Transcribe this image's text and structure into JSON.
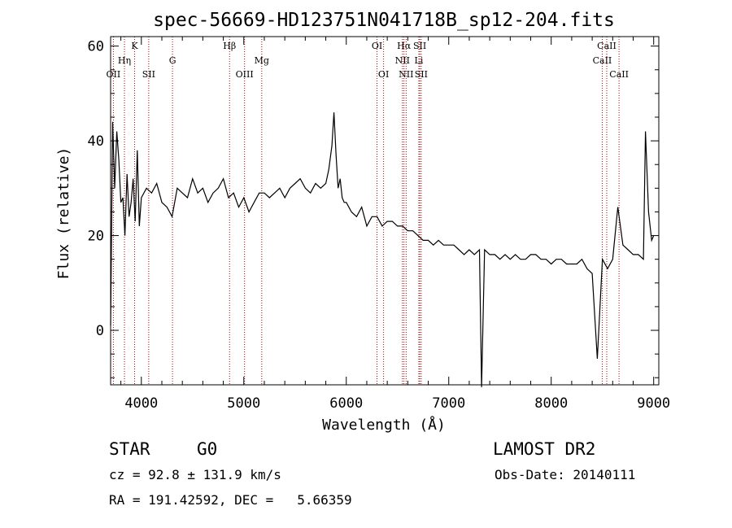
{
  "chart_data": {
    "type": "line",
    "title": "spec-56669-HD123751N041718B_sp12-204.fits",
    "xlabel": "Wavelength (Å)",
    "ylabel": "Flux (relative)",
    "xlim": [
      3700,
      9050
    ],
    "ylim": [
      -11.5,
      62
    ],
    "xticks": [
      4000,
      5000,
      6000,
      7000,
      8000,
      9000
    ],
    "yticks": [
      0,
      20,
      40,
      60
    ],
    "line_color": "#000000",
    "marker_color": "#b00000",
    "series": [
      {
        "x": [
          3700,
          3720,
          3740,
          3760,
          3780,
          3800,
          3820,
          3840,
          3860,
          3880,
          3900,
          3920,
          3940,
          3960,
          3980,
          4000,
          4050,
          4100,
          4150,
          4200,
          4250,
          4300,
          4350,
          4400,
          4450,
          4500,
          4550,
          4600,
          4650,
          4700,
          4750,
          4800,
          4850,
          4900,
          4950,
          5000,
          5050,
          5100,
          5150,
          5200,
          5250,
          5300,
          5350,
          5400,
          5450,
          5500,
          5550,
          5600,
          5650,
          5700,
          5750,
          5800,
          5830,
          5860,
          5880,
          5900,
          5920,
          5940,
          5960,
          5980,
          6000,
          6050,
          6100,
          6150,
          6200,
          6250,
          6300,
          6350,
          6400,
          6450,
          6500,
          6550,
          6600,
          6650,
          6700,
          6750,
          6800,
          6850,
          6900,
          6950,
          7000,
          7050,
          7100,
          7150,
          7200,
          7250,
          7300,
          7320,
          7350,
          7400,
          7450,
          7500,
          7550,
          7600,
          7650,
          7700,
          7750,
          7800,
          7850,
          7900,
          7950,
          8000,
          8050,
          8100,
          8150,
          8200,
          8250,
          8300,
          8350,
          8400,
          8450,
          8500,
          8550,
          8600,
          8650,
          8700,
          8750,
          8800,
          8850,
          8900,
          8920,
          8950,
          8980,
          9000
        ],
        "y": [
          1,
          44,
          30,
          42,
          36,
          27,
          28,
          20,
          33,
          24,
          27,
          32,
          23,
          38,
          22,
          28,
          30,
          29,
          31,
          27,
          26,
          24,
          30,
          29,
          28,
          32,
          29,
          30,
          27,
          29,
          30,
          32,
          28,
          29,
          26,
          28,
          25,
          27,
          29,
          29,
          28,
          29,
          30,
          28,
          30,
          31,
          32,
          30,
          29,
          31,
          30,
          31,
          34,
          39,
          46,
          37,
          30,
          32,
          28,
          27,
          27,
          25,
          24,
          26,
          22,
          24,
          24,
          22,
          23,
          23,
          22,
          22,
          21,
          21,
          20,
          19,
          19,
          18,
          19,
          18,
          18,
          18,
          17,
          16,
          17,
          16,
          17,
          -12,
          17,
          16,
          16,
          15,
          16,
          15,
          16,
          15,
          15,
          16,
          16,
          15,
          15,
          14,
          15,
          15,
          14,
          14,
          14,
          15,
          13,
          12,
          -6,
          15,
          13,
          15,
          26,
          18,
          17,
          16,
          16,
          15,
          42,
          25,
          19,
          20
        ]
      }
    ],
    "markers": [
      {
        "label": "OII",
        "x": 3727,
        "row": 3
      },
      {
        "label": "Hη",
        "x": 3835,
        "row": 2
      },
      {
        "label": "K",
        "x": 3934,
        "row": 1
      },
      {
        "label": "SII",
        "x": 4072,
        "row": 3
      },
      {
        "label": "G",
        "x": 4304,
        "row": 2
      },
      {
        "label": "Hβ",
        "x": 4861,
        "row": 1
      },
      {
        "label": "OIII",
        "x": 5007,
        "row": 3
      },
      {
        "label": "Mg",
        "x": 5175,
        "row": 2
      },
      {
        "label": "OI",
        "x": 6300,
        "row": 1
      },
      {
        "label": "OI",
        "x": 6364,
        "row": 3
      },
      {
        "label": "Hα",
        "x": 6563,
        "row": 1
      },
      {
        "label": "NII",
        "x": 6548,
        "row": 2
      },
      {
        "label": "NII",
        "x": 6584,
        "row": 3
      },
      {
        "label": "SII",
        "x": 6717,
        "row": 1
      },
      {
        "label": "Li",
        "x": 6708,
        "row": 2
      },
      {
        "label": "SII",
        "x": 6731,
        "row": 3
      },
      {
        "label": "CaII",
        "x": 8542,
        "row": 1
      },
      {
        "label": "CaII",
        "x": 8498,
        "row": 2
      },
      {
        "label": "CaII",
        "x": 8662,
        "row": 3
      }
    ]
  },
  "info": {
    "object_class": "STAR",
    "subclass": "G0",
    "survey": "LAMOST DR2",
    "redshift_line": "cz = 92.8 ± 131.9 km/s",
    "obs_date_line": "Obs-Date: 20140111",
    "coords_line": "RA = 191.42592, DEC =   5.66359"
  }
}
